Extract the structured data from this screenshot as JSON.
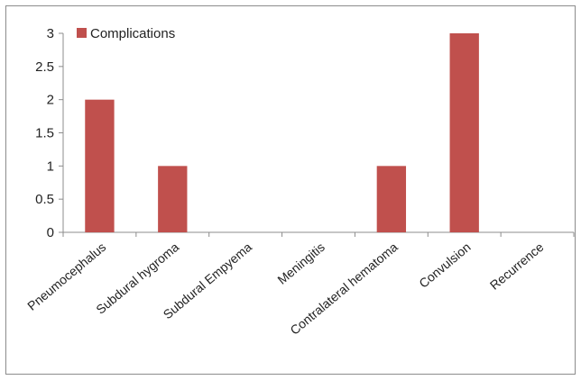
{
  "chart_data": {
    "type": "bar",
    "categories": [
      "Pneumocephalus",
      "Subdural hygroma",
      "Subdural Empyema",
      "Meningitis",
      "Contralateral hematoma",
      "Convulsion",
      "Recurrence"
    ],
    "series": [
      {
        "name": "Complications",
        "values": [
          2,
          1,
          0,
          0,
          1,
          3,
          0
        ],
        "color": "#c0504d"
      }
    ],
    "yticks": [
      "0",
      "0.5",
      "1",
      "1.5",
      "2",
      "2.5",
      "3"
    ],
    "ylim": [
      0,
      3
    ],
    "legend_position": "top-left",
    "grid": false
  }
}
